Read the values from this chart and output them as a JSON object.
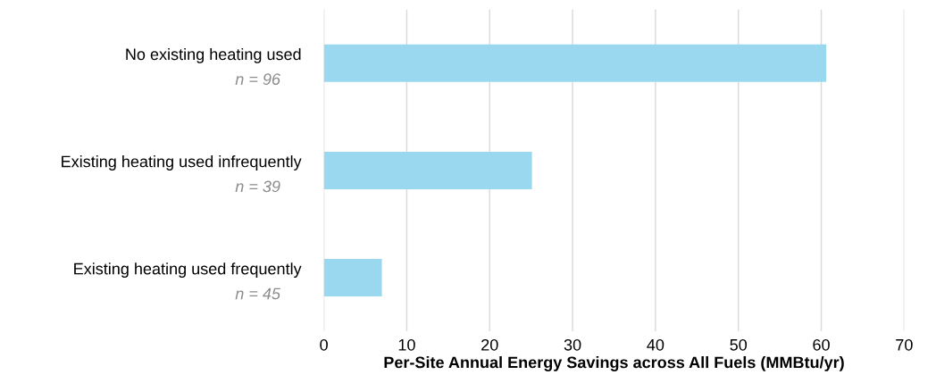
{
  "chart_data": {
    "type": "bar",
    "orientation": "horizontal",
    "xlabel": "Per-Site Annual Energy Savings across All Fuels (MMBtu/yr)",
    "categories": [
      "No existing heating used",
      "Existing heating used infrequently",
      "Existing heating used frequently"
    ],
    "values": [
      60.6,
      25.1,
      7.0
    ],
    "color": "#99d8ef",
    "annotations": [
      "n = 96",
      "n = 39",
      "n = 45"
    ],
    "xlim": [
      0,
      70
    ],
    "xticks": [
      0,
      10,
      20,
      30,
      40,
      50,
      60,
      70
    ],
    "grid": "x"
  }
}
